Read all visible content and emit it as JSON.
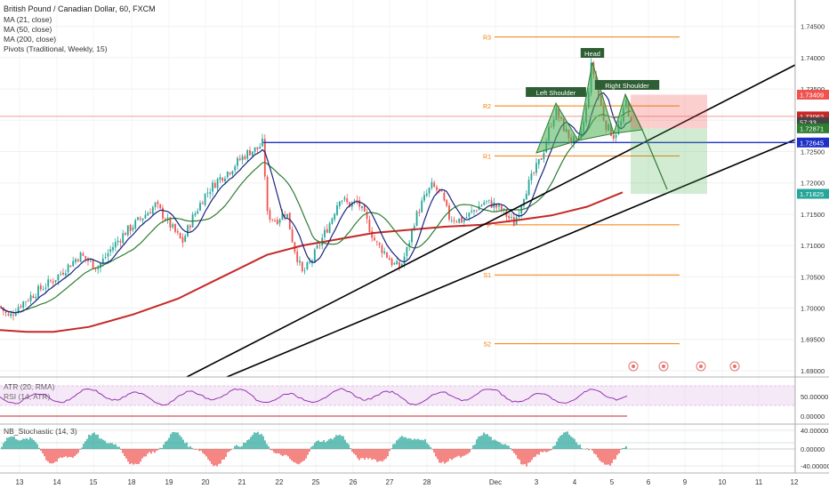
{
  "legend": [
    "British Pound / Canadian Dollar, 60, FXCM",
    "MA (21, close)",
    "MA (50, close)",
    "MA (200, close)",
    "Pivots (Traditional, Weekly, 15)"
  ],
  "colors": {
    "bull": "#26a69a",
    "bear": "#ef5350",
    "ma21": "#1a237e",
    "ma50": "#2e7d32",
    "ma200": "#c62828",
    "pivot": "#f57c00",
    "neckline": "#1e30c8",
    "hs_fill": "#4caf50",
    "rsi": "#8e24aa",
    "trend": "#000000"
  },
  "chart_data": [
    {
      "type": "candlestick",
      "title": "British Pound / Canadian Dollar, 60, FXCM",
      "ylim": [
        1.689,
        1.7485
      ],
      "y_ticks": [
        "1.74500",
        "1.74000",
        "1.73500",
        "1.73000",
        "1.72500",
        "1.72000",
        "1.71500",
        "1.71000",
        "1.70500",
        "1.70000",
        "1.69500",
        "1.69000"
      ],
      "x_ticks": [
        "13",
        "14",
        "15",
        "18",
        "19",
        "20",
        "21",
        "22",
        "25",
        "26",
        "27",
        "28",
        "Dec",
        "3",
        "4",
        "5",
        "6",
        "9",
        "10",
        "11",
        "12"
      ],
      "price_labels": [
        {
          "text": "1.73409",
          "value": 1.73409,
          "color": "#ef5350"
        },
        {
          "text": "1.73062",
          "value": 1.73062,
          "color": "#c62828"
        },
        {
          "text": "57:33",
          "value": 1.7297,
          "color": "#444444"
        },
        {
          "text": "1.72871",
          "value": 1.72871,
          "color": "#2e7d32"
        },
        {
          "text": "1.72645",
          "value": 1.72645,
          "color": "#1e30c8"
        },
        {
          "text": "1.71825",
          "value": 1.71825,
          "color": "#26a69a"
        }
      ],
      "pivots": [
        {
          "label": "R3",
          "value": 1.7433
        },
        {
          "label": "R2",
          "value": 1.7323
        },
        {
          "label": "R1",
          "value": 1.7243
        },
        {
          "label": "P",
          "value": 1.7133
        },
        {
          "label": "S1",
          "value": 1.7053
        },
        {
          "label": "S2",
          "value": 1.6943
        }
      ],
      "annotations": [
        "Left Shoulder",
        "Head",
        "Right Shoulder"
      ],
      "neckline": 1.72645,
      "trade": {
        "entry": 1.72871,
        "stop": 1.73409,
        "target": 1.71825
      }
    },
    {
      "type": "line",
      "title": "ATR (20, RMA)",
      "subtitle": "RSI (14, ATR)",
      "y_ticks": [
        "50.00000",
        "0.00000"
      ]
    },
    {
      "type": "bar",
      "title": "NB_Stochastic (14, 3)",
      "y_ticks": [
        "40.00000",
        "0.00000",
        "-40.00000"
      ]
    }
  ]
}
